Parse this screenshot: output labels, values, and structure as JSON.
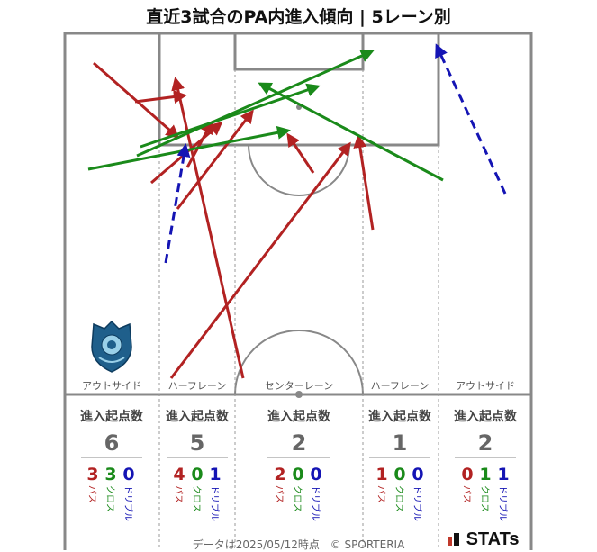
{
  "title": "直近3試合のPA内進入傾向 | 5レーン別",
  "colors": {
    "pass": "#b22222",
    "cross": "#1a8a1a",
    "dribble": "#1414b4"
  },
  "lanes": [
    {
      "label": "アウトサイド",
      "header": "進入起点数",
      "total": "6",
      "pass": "3",
      "cross": "3",
      "dribble": "0"
    },
    {
      "label": "ハーフレーン",
      "header": "進入起点数",
      "total": "5",
      "pass": "4",
      "cross": "0",
      "dribble": "1"
    },
    {
      "label": "センターレーン",
      "header": "進入起点数",
      "total": "2",
      "pass": "2",
      "cross": "0",
      "dribble": "0"
    },
    {
      "label": "ハーフレーン",
      "header": "進入起点数",
      "total": "1",
      "pass": "1",
      "cross": "0",
      "dribble": "0"
    },
    {
      "label": "アウトサイド",
      "header": "進入起点数",
      "total": "2",
      "pass": "0",
      "cross": "1",
      "dribble": "1"
    }
  ],
  "categories": {
    "pass": "パス",
    "cross": "クロス",
    "dribble": "ドリブル"
  },
  "footer": {
    "date": "データは2025/05/12時点",
    "copyright": "© SPORTERIA"
  },
  "brand": "STATs",
  "logo": "club-crest"
}
